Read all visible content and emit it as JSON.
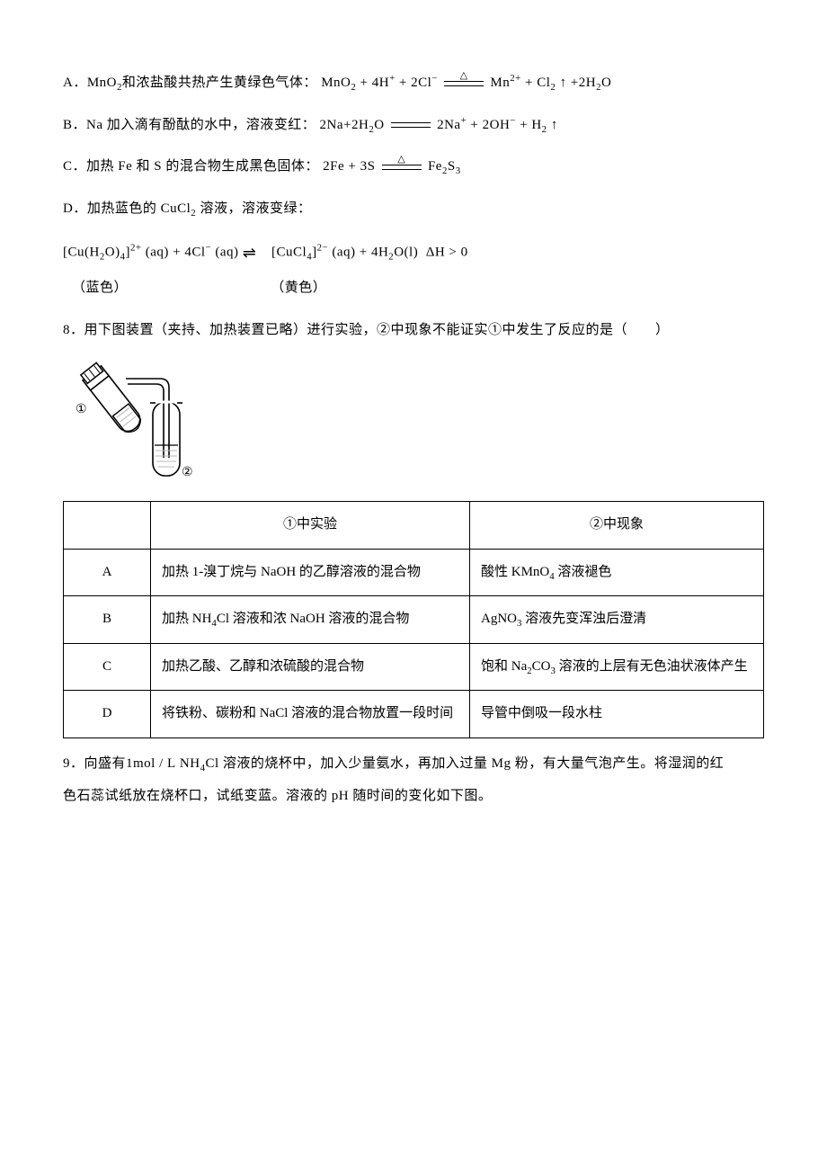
{
  "optA": {
    "label": "A．",
    "t1": "MnO",
    "s1": "2",
    "t2": "和浓盐酸共热产生黄绿色气体：",
    "eq": "MnO<sub>2</sub> + 4H<sup>+</sup> + 2Cl<sup>−</sup> <span class=\"eq-long tri\"></span> Mn<sup>2+</sup> + Cl<sub>2</sub> ↑ +2H<sub>2</sub>O"
  },
  "optB": {
    "label": "B．",
    "t1": "Na 加入滴有酚酞的水中，溶液变红：",
    "eq": "2Na+2H<sub>2</sub>O <span class=\"eq-long\"></span> 2Na<sup>+</sup> + 2OH<sup>−</sup> + H<sub>2</sub> ↑"
  },
  "optC": {
    "label": "C．",
    "t1": "加热 Fe 和 S 的混合物生成黑色固体：",
    "eq": "2Fe + 3S <span class=\"eq-long tri\"></span> Fe<sub>2</sub>S<sub>3</sub>"
  },
  "optD": {
    "label": "D．",
    "t1": "加热蓝色的 CuCl",
    "s1": "2",
    "t2": "溶液，溶液变绿："
  },
  "eqD": "[Cu(H<sub>2</sub>O)<sub>4</sub>]<sup>2+</sup> (aq) + 4Cl<sup>−</sup> (aq) <span class=\"rarrh\"></span> [CuCl<sub>4</sub>]<sup>2−</sup> (aq) + 4H<sub>2</sub>O(l)&nbsp;&nbsp;ΔH &gt; 0",
  "colors": {
    "blue": "（蓝色）",
    "yellow": "（黄色）"
  },
  "q8": "8．用下图装置（夹持、加热装置已略）进行实验，②中现象不能证实①中发生了反应的是（　　）",
  "diagram": {
    "label1": "①",
    "label2": "②",
    "stroke": "#000000",
    "fill": "#ffffff",
    "hatch": "#b8b8b8"
  },
  "table": {
    "h1": "①中实验",
    "h2": "②中现象",
    "rows": [
      {
        "l": "A",
        "exp": "加热 1-溴丁烷与 NaOH 的乙醇溶液的混合物",
        "obs": "酸性 KMnO<sub>4</sub> 溶液褪色"
      },
      {
        "l": "B",
        "exp": "加热 NH<sub>4</sub>Cl 溶液和浓 NaOH 溶液的混合物",
        "obs": "AgNO<sub>3</sub> 溶液先变浑浊后澄清"
      },
      {
        "l": "C",
        "exp": "加热乙酸、乙醇和浓硫酸的混合物",
        "obs": "饱和 Na<sub>2</sub>CO<sub>3</sub> 溶液的上层有无色油状液体产生"
      },
      {
        "l": "D",
        "exp": "将铁粉、碳粉和 NaCl 溶液的混合物放置一段时间",
        "obs": "导管中倒吸一段水柱"
      }
    ]
  },
  "q9a": "9．向盛有1mol / L&nbsp;NH<sub>4</sub>Cl 溶液的烧杯中，加入少量氨水，再加入过量 Mg 粉，有大量气泡产生。将湿润的红",
  "q9b": "色石蕊试纸放在烧杯口，试纸变蓝。溶液的 pH 随时间的变化如下图。"
}
